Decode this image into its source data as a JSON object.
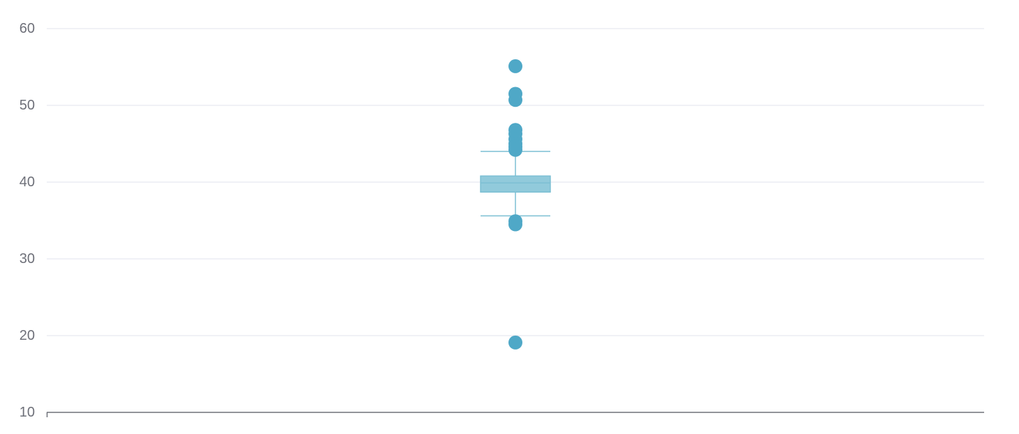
{
  "chart_data": {
    "type": "boxplot",
    "title": "",
    "xlabel": "",
    "ylabel": "",
    "ylim": [
      10,
      60
    ],
    "yticks": [
      "10",
      "20",
      "30",
      "40",
      "50",
      "60"
    ],
    "grid": true,
    "legend": "none",
    "series": [
      {
        "box": {
          "whisker_low": 35.6,
          "q1": 38.7,
          "median": 39.9,
          "q3": 40.8,
          "whisker_high": 44.0
        },
        "outliers": [
          55.1,
          51.5,
          50.7,
          46.8,
          46.3,
          45.6,
          45.0,
          44.6,
          44.2,
          34.9,
          34.5,
          19.1
        ]
      }
    ],
    "colors": {
      "box_fill": "#91cadb",
      "box_stroke": "#7cbfd3",
      "outlier": "#4fa8c7",
      "grid": "#e0e3ec",
      "axis": "#6e7079",
      "tick_text": "#6e7079"
    }
  }
}
